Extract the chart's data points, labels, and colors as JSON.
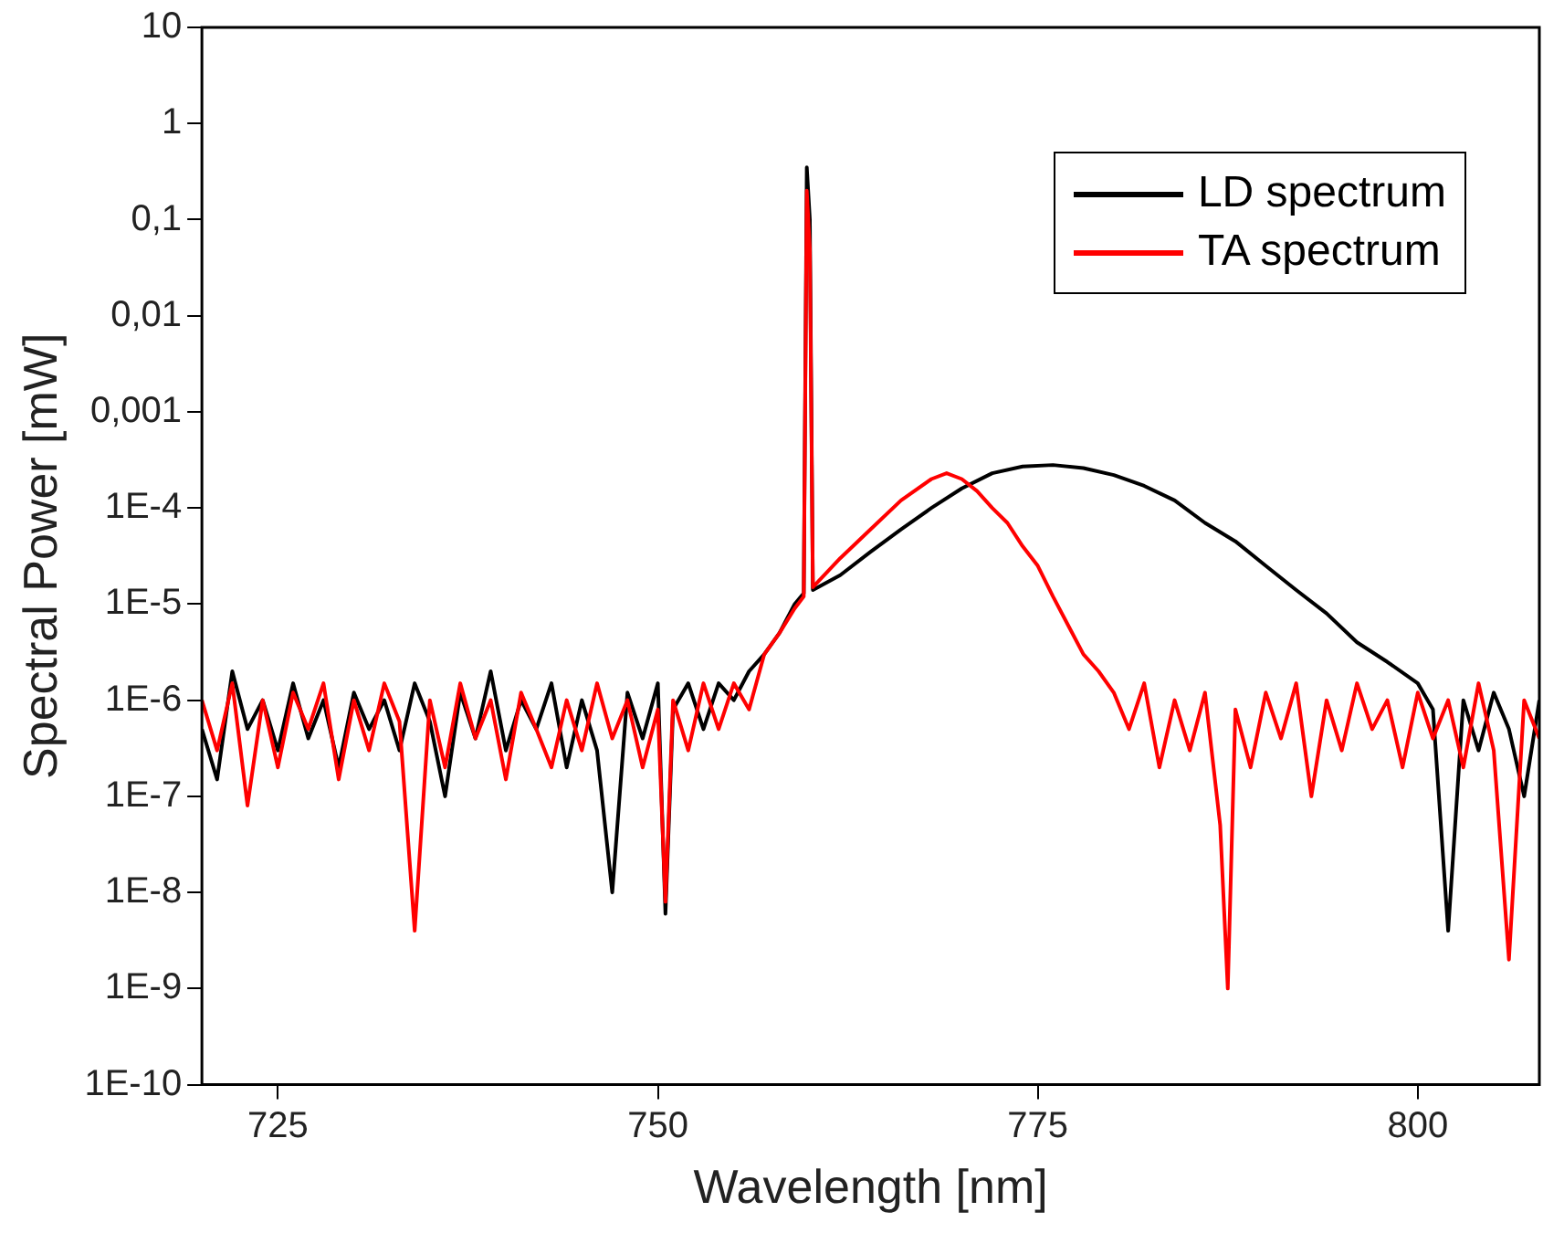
{
  "chart_data": {
    "type": "line",
    "xlabel": "Wavelength [nm]",
    "ylabel": "Spectral Power [mW]",
    "log": "y",
    "grid": false,
    "legend": "top right",
    "marker": "none",
    "line_style": "solid",
    "xlim": [
      720,
      808
    ],
    "xticks": [
      725,
      750,
      775,
      800
    ],
    "ylim": [
      1e-10,
      10
    ],
    "yticks": [
      10,
      1,
      {
        "value": 0.1,
        "label": "0,1"
      },
      {
        "value": 0.01,
        "label": "0,01"
      },
      {
        "value": 0.001,
        "label": "0,001"
      },
      {
        "value": 0.0001,
        "label": "1E-4"
      },
      {
        "value": 1e-05,
        "label": "1E-5"
      },
      {
        "value": 1e-06,
        "label": "1E-6"
      },
      {
        "value": 1e-07,
        "label": "1E-7"
      },
      {
        "value": 1e-08,
        "label": "1E-8"
      },
      {
        "value": 1e-09,
        "label": "1E-9"
      },
      {
        "value": 1e-10,
        "label": "1E-10"
      }
    ],
    "series": [
      {
        "name": "LD spectrum",
        "color": "#000000",
        "x": [
          720,
          721,
          722,
          723,
          724,
          725,
          726,
          727,
          728,
          729,
          730,
          731,
          732,
          733,
          734,
          735,
          736,
          737,
          738,
          739,
          740,
          741,
          742,
          743,
          744,
          745,
          746,
          747,
          748,
          749,
          750,
          750.5,
          751,
          752,
          753,
          754,
          755,
          756,
          757,
          758,
          759,
          759.6,
          759.8,
          760,
          760.2,
          762,
          764,
          766,
          768,
          770,
          772,
          774,
          776,
          778,
          780,
          782,
          784,
          786,
          788,
          790,
          792,
          794,
          796,
          798,
          800,
          801,
          802,
          803,
          804,
          805,
          806,
          807,
          808
        ],
        "values": [
          5e-07,
          1.5e-07,
          2e-06,
          5e-07,
          1e-06,
          3e-07,
          1.5e-06,
          4e-07,
          1e-06,
          2e-07,
          1.2e-06,
          5e-07,
          1e-06,
          3e-07,
          1.5e-06,
          6e-07,
          1e-07,
          1.2e-06,
          4e-07,
          2e-06,
          3e-07,
          1e-06,
          5e-07,
          1.5e-06,
          2e-07,
          1e-06,
          3e-07,
          1e-08,
          1.2e-06,
          4e-07,
          1.5e-06,
          6e-09,
          8e-07,
          1.5e-06,
          5e-07,
          1.5e-06,
          1e-06,
          2e-06,
          3e-06,
          5e-06,
          1e-05,
          1.3e-05,
          0.35,
          0.1,
          1.4e-05,
          2e-05,
          3.5e-05,
          6e-05,
          0.0001,
          0.00016,
          0.00023,
          0.00027,
          0.00028,
          0.00026,
          0.00022,
          0.00017,
          0.00012,
          7e-05,
          4.5e-05,
          2.5e-05,
          1.4e-05,
          8e-06,
          4e-06,
          2.5e-06,
          1.5e-06,
          8e-07,
          4e-09,
          1e-06,
          3e-07,
          1.2e-06,
          5e-07,
          1e-07,
          1e-06
        ]
      },
      {
        "name": "TA spectrum",
        "color": "#ff0000",
        "x": [
          720,
          721,
          722,
          723,
          724,
          725,
          726,
          727,
          728,
          729,
          730,
          731,
          732,
          733,
          734,
          735,
          736,
          737,
          738,
          739,
          740,
          741,
          742,
          743,
          744,
          745,
          746,
          747,
          748,
          749,
          750,
          750.5,
          751,
          752,
          753,
          754,
          755,
          756,
          757,
          758,
          759,
          759.6,
          759.8,
          760,
          760.2,
          762,
          764,
          766,
          768,
          769,
          770,
          771,
          772,
          773,
          774,
          775,
          776,
          777,
          778,
          779,
          780,
          781,
          782,
          783,
          784,
          785,
          786,
          787,
          787.5,
          788,
          789,
          790,
          791,
          792,
          793,
          794,
          795,
          796,
          797,
          798,
          799,
          800,
          801,
          802,
          803,
          804,
          805,
          806,
          807,
          808
        ],
        "values": [
          1e-06,
          3e-07,
          1.5e-06,
          8e-08,
          1e-06,
          2e-07,
          1.2e-06,
          5e-07,
          1.5e-06,
          1.5e-07,
          1e-06,
          3e-07,
          1.5e-06,
          6e-07,
          4e-09,
          1e-06,
          2e-07,
          1.5e-06,
          4e-07,
          1e-06,
          1.5e-07,
          1.2e-06,
          5e-07,
          2e-07,
          1e-06,
          3e-07,
          1.5e-06,
          4e-07,
          1e-06,
          2e-07,
          8e-07,
          8e-09,
          1e-06,
          3e-07,
          1.5e-06,
          5e-07,
          1.5e-06,
          8e-07,
          3e-06,
          5e-06,
          9e-06,
          1.2e-05,
          0.2,
          0.05,
          1.5e-05,
          3e-05,
          6e-05,
          0.00012,
          0.0002,
          0.00023,
          0.0002,
          0.00015,
          0.0001,
          7e-05,
          4e-05,
          2.5e-05,
          1.2e-05,
          6e-06,
          3e-06,
          2e-06,
          1.2e-06,
          5e-07,
          1.5e-06,
          2e-07,
          1e-06,
          3e-07,
          1.2e-06,
          5e-08,
          1e-09,
          8e-07,
          2e-07,
          1.2e-06,
          4e-07,
          1.5e-06,
          1e-07,
          1e-06,
          3e-07,
          1.5e-06,
          5e-07,
          1e-06,
          2e-07,
          1.2e-06,
          4e-07,
          1e-06,
          2e-07,
          1.5e-06,
          3e-07,
          2e-09,
          1e-06,
          4e-07
        ]
      }
    ]
  }
}
